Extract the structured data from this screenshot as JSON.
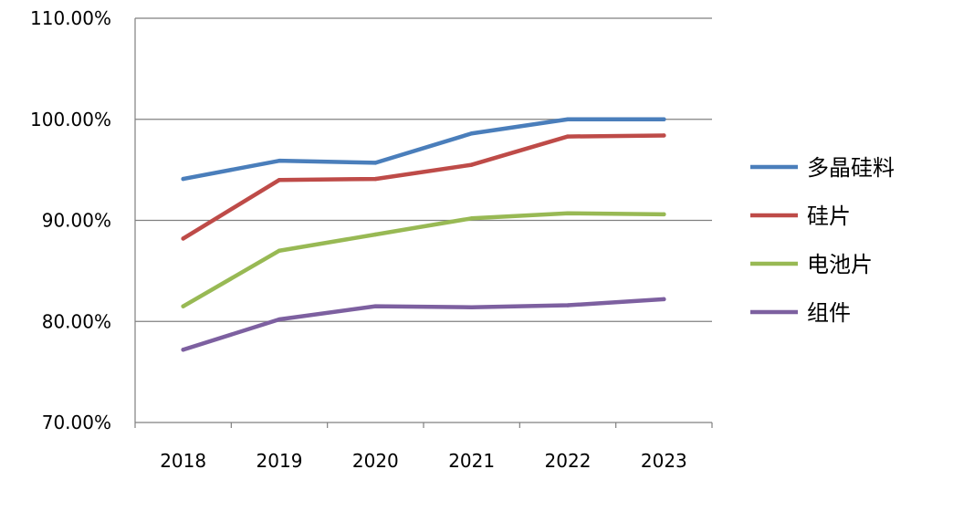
{
  "chart_data": {
    "type": "line",
    "title": "",
    "xlabel": "",
    "ylabel": "",
    "categories": [
      "2018",
      "2019",
      "2020",
      "2021",
      "2022",
      "2023"
    ],
    "ylim": [
      70,
      110
    ],
    "yticks": [
      70,
      80,
      90,
      100,
      110
    ],
    "ytick_labels": [
      "70.00%",
      "80.00%",
      "90.00%",
      "100.00%",
      "110.00%"
    ],
    "grid": true,
    "legend_position": "right",
    "series": [
      {
        "name": "多晶硅料",
        "color": "#4a7ebb",
        "values": [
          94.1,
          95.9,
          95.7,
          98.6,
          100.0,
          100.0
        ]
      },
      {
        "name": "硅片",
        "color": "#be4b48",
        "values": [
          88.2,
          94.0,
          94.1,
          95.5,
          98.3,
          98.4
        ]
      },
      {
        "name": "电池片",
        "color": "#98b954",
        "values": [
          81.5,
          87.0,
          88.6,
          90.2,
          90.7,
          90.6
        ]
      },
      {
        "name": "组件",
        "color": "#7d60a0",
        "values": [
          77.2,
          80.2,
          81.5,
          81.4,
          81.6,
          82.2
        ]
      }
    ]
  }
}
